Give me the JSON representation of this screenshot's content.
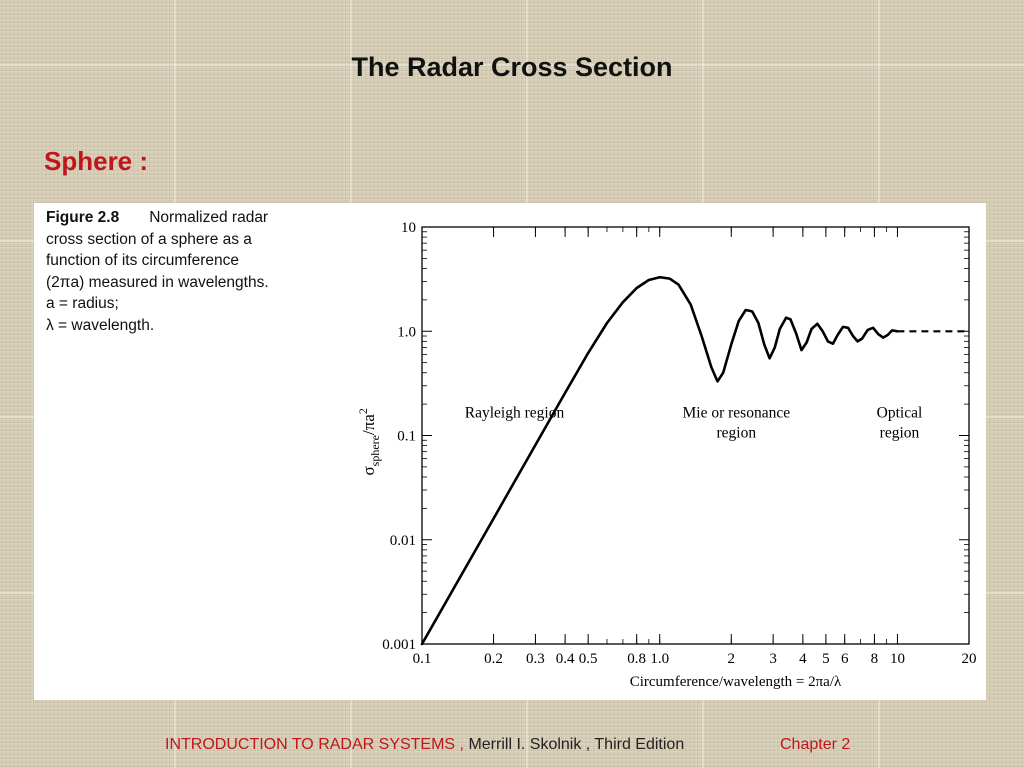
{
  "slide": {
    "title": "The Radar Cross Section",
    "section_label": "Sphere :"
  },
  "figure": {
    "number": "Figure 2.8",
    "caption_lines": [
      "Normalized radar",
      "cross section of a sphere as a",
      "function of its circumference",
      "(2πa) measured in wavelengths.",
      "a = radius;",
      "λ = wavelength."
    ]
  },
  "chart_data": {
    "type": "line",
    "xlabel": "Circumference/wavelength = 2πa/λ",
    "ylabel": "σsphere/πa²",
    "ylabel_main": "σ",
    "ylabel_sub": "sphere",
    "ylabel_rest": "/πa",
    "ylabel_sup": "2",
    "x_scale": "log",
    "y_scale": "log",
    "xlim": [
      0.1,
      20
    ],
    "ylim": [
      0.001,
      10
    ],
    "x_tick_values": [
      0.1,
      0.2,
      0.3,
      0.4,
      0.5,
      0.8,
      1.0,
      2,
      3,
      4,
      5,
      6,
      8,
      10,
      20
    ],
    "x_tick_labels": [
      "0.1",
      "0.2",
      "0.3",
      "0.4",
      "0.5",
      "0.8",
      "1.0",
      "2",
      "3",
      "4",
      "5",
      "6",
      "8",
      "10",
      "20"
    ],
    "y_tick_values": [
      0.001,
      0.01,
      0.1,
      1.0,
      10
    ],
    "y_tick_labels": [
      "0.001",
      "0.01",
      "0.1",
      "1.0",
      "10"
    ],
    "grid": false,
    "annotations": [
      {
        "text": "Rayleigh region",
        "x": 0.245,
        "y": 0.125,
        "lines": [
          "Rayleigh region"
        ]
      },
      {
        "text": "Mie or resonance region",
        "x": 2.1,
        "y": 0.125,
        "lines": [
          "Mie or resonance",
          "region"
        ]
      },
      {
        "text": "Optical region",
        "x": 10.2,
        "y": 0.125,
        "lines": [
          "Optical",
          "region"
        ]
      }
    ],
    "series": [
      {
        "style": "solid",
        "points": [
          [
            0.1,
            0.001
          ],
          [
            0.2,
            0.016
          ],
          [
            0.3,
            0.081
          ],
          [
            0.4,
            0.256
          ],
          [
            0.5,
            0.62
          ],
          [
            0.6,
            1.2
          ],
          [
            0.7,
            1.9
          ],
          [
            0.8,
            2.6
          ],
          [
            0.9,
            3.1
          ],
          [
            1.0,
            3.3
          ],
          [
            1.1,
            3.2
          ],
          [
            1.2,
            2.8
          ],
          [
            1.35,
            1.8
          ],
          [
            1.5,
            0.9
          ],
          [
            1.65,
            0.45
          ],
          [
            1.75,
            0.33
          ],
          [
            1.85,
            0.4
          ],
          [
            2.0,
            0.75
          ],
          [
            2.15,
            1.25
          ],
          [
            2.3,
            1.6
          ],
          [
            2.45,
            1.55
          ],
          [
            2.6,
            1.2
          ],
          [
            2.75,
            0.75
          ],
          [
            2.9,
            0.55
          ],
          [
            3.05,
            0.7
          ],
          [
            3.2,
            1.05
          ],
          [
            3.4,
            1.35
          ],
          [
            3.55,
            1.3
          ],
          [
            3.75,
            0.95
          ],
          [
            3.95,
            0.66
          ],
          [
            4.15,
            0.78
          ],
          [
            4.35,
            1.05
          ],
          [
            4.6,
            1.18
          ],
          [
            4.85,
            1.0
          ],
          [
            5.1,
            0.8
          ],
          [
            5.35,
            0.76
          ],
          [
            5.6,
            0.92
          ],
          [
            5.9,
            1.1
          ],
          [
            6.2,
            1.08
          ],
          [
            6.5,
            0.9
          ],
          [
            6.8,
            0.8
          ],
          [
            7.1,
            0.85
          ],
          [
            7.5,
            1.03
          ],
          [
            7.9,
            1.08
          ],
          [
            8.3,
            0.94
          ],
          [
            8.7,
            0.87
          ],
          [
            9.1,
            0.92
          ],
          [
            9.5,
            1.02
          ],
          [
            10.0,
            1.0
          ]
        ]
      },
      {
        "style": "dashed",
        "points": [
          [
            10.0,
            1.0
          ],
          [
            20.0,
            1.0
          ]
        ]
      }
    ]
  },
  "footer": {
    "book_title": "INTRODUCTION  TO  RADAR  SYSTEMS ,",
    "author_edition": " Merrill I. Skolnik , Third Edition",
    "chapter": "Chapter 2"
  }
}
